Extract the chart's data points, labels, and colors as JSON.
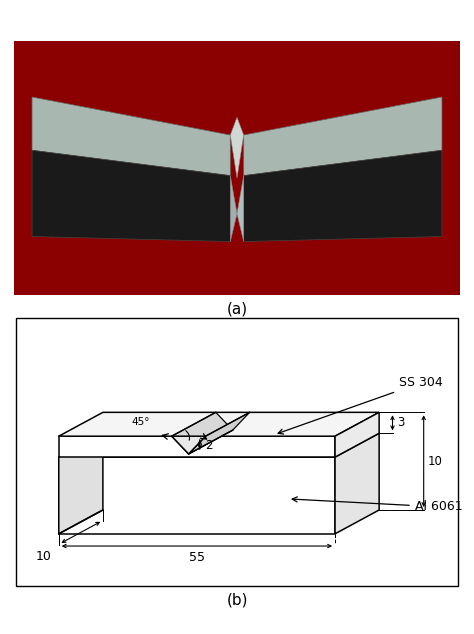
{
  "fig_width": 4.74,
  "fig_height": 6.34,
  "bg_color": "#ffffff",
  "label_a": "(a)",
  "label_b": "(b)",
  "photo_bg": "#8b0000",
  "dim_55": "55",
  "dim_10_bottom": "10",
  "dim_10_right": "10",
  "dim_3": "3",
  "dim_2": "2",
  "dim_45": "45°",
  "label_ss304": "SS 304",
  "label_al6061": "Al 6061",
  "line_color": "#000000",
  "box_bg": "#ffffff",
  "photo_top_color": "#a8b8b0",
  "photo_dark_color": "#1a1a1a",
  "photo_notch_color": "#c0c8c4"
}
